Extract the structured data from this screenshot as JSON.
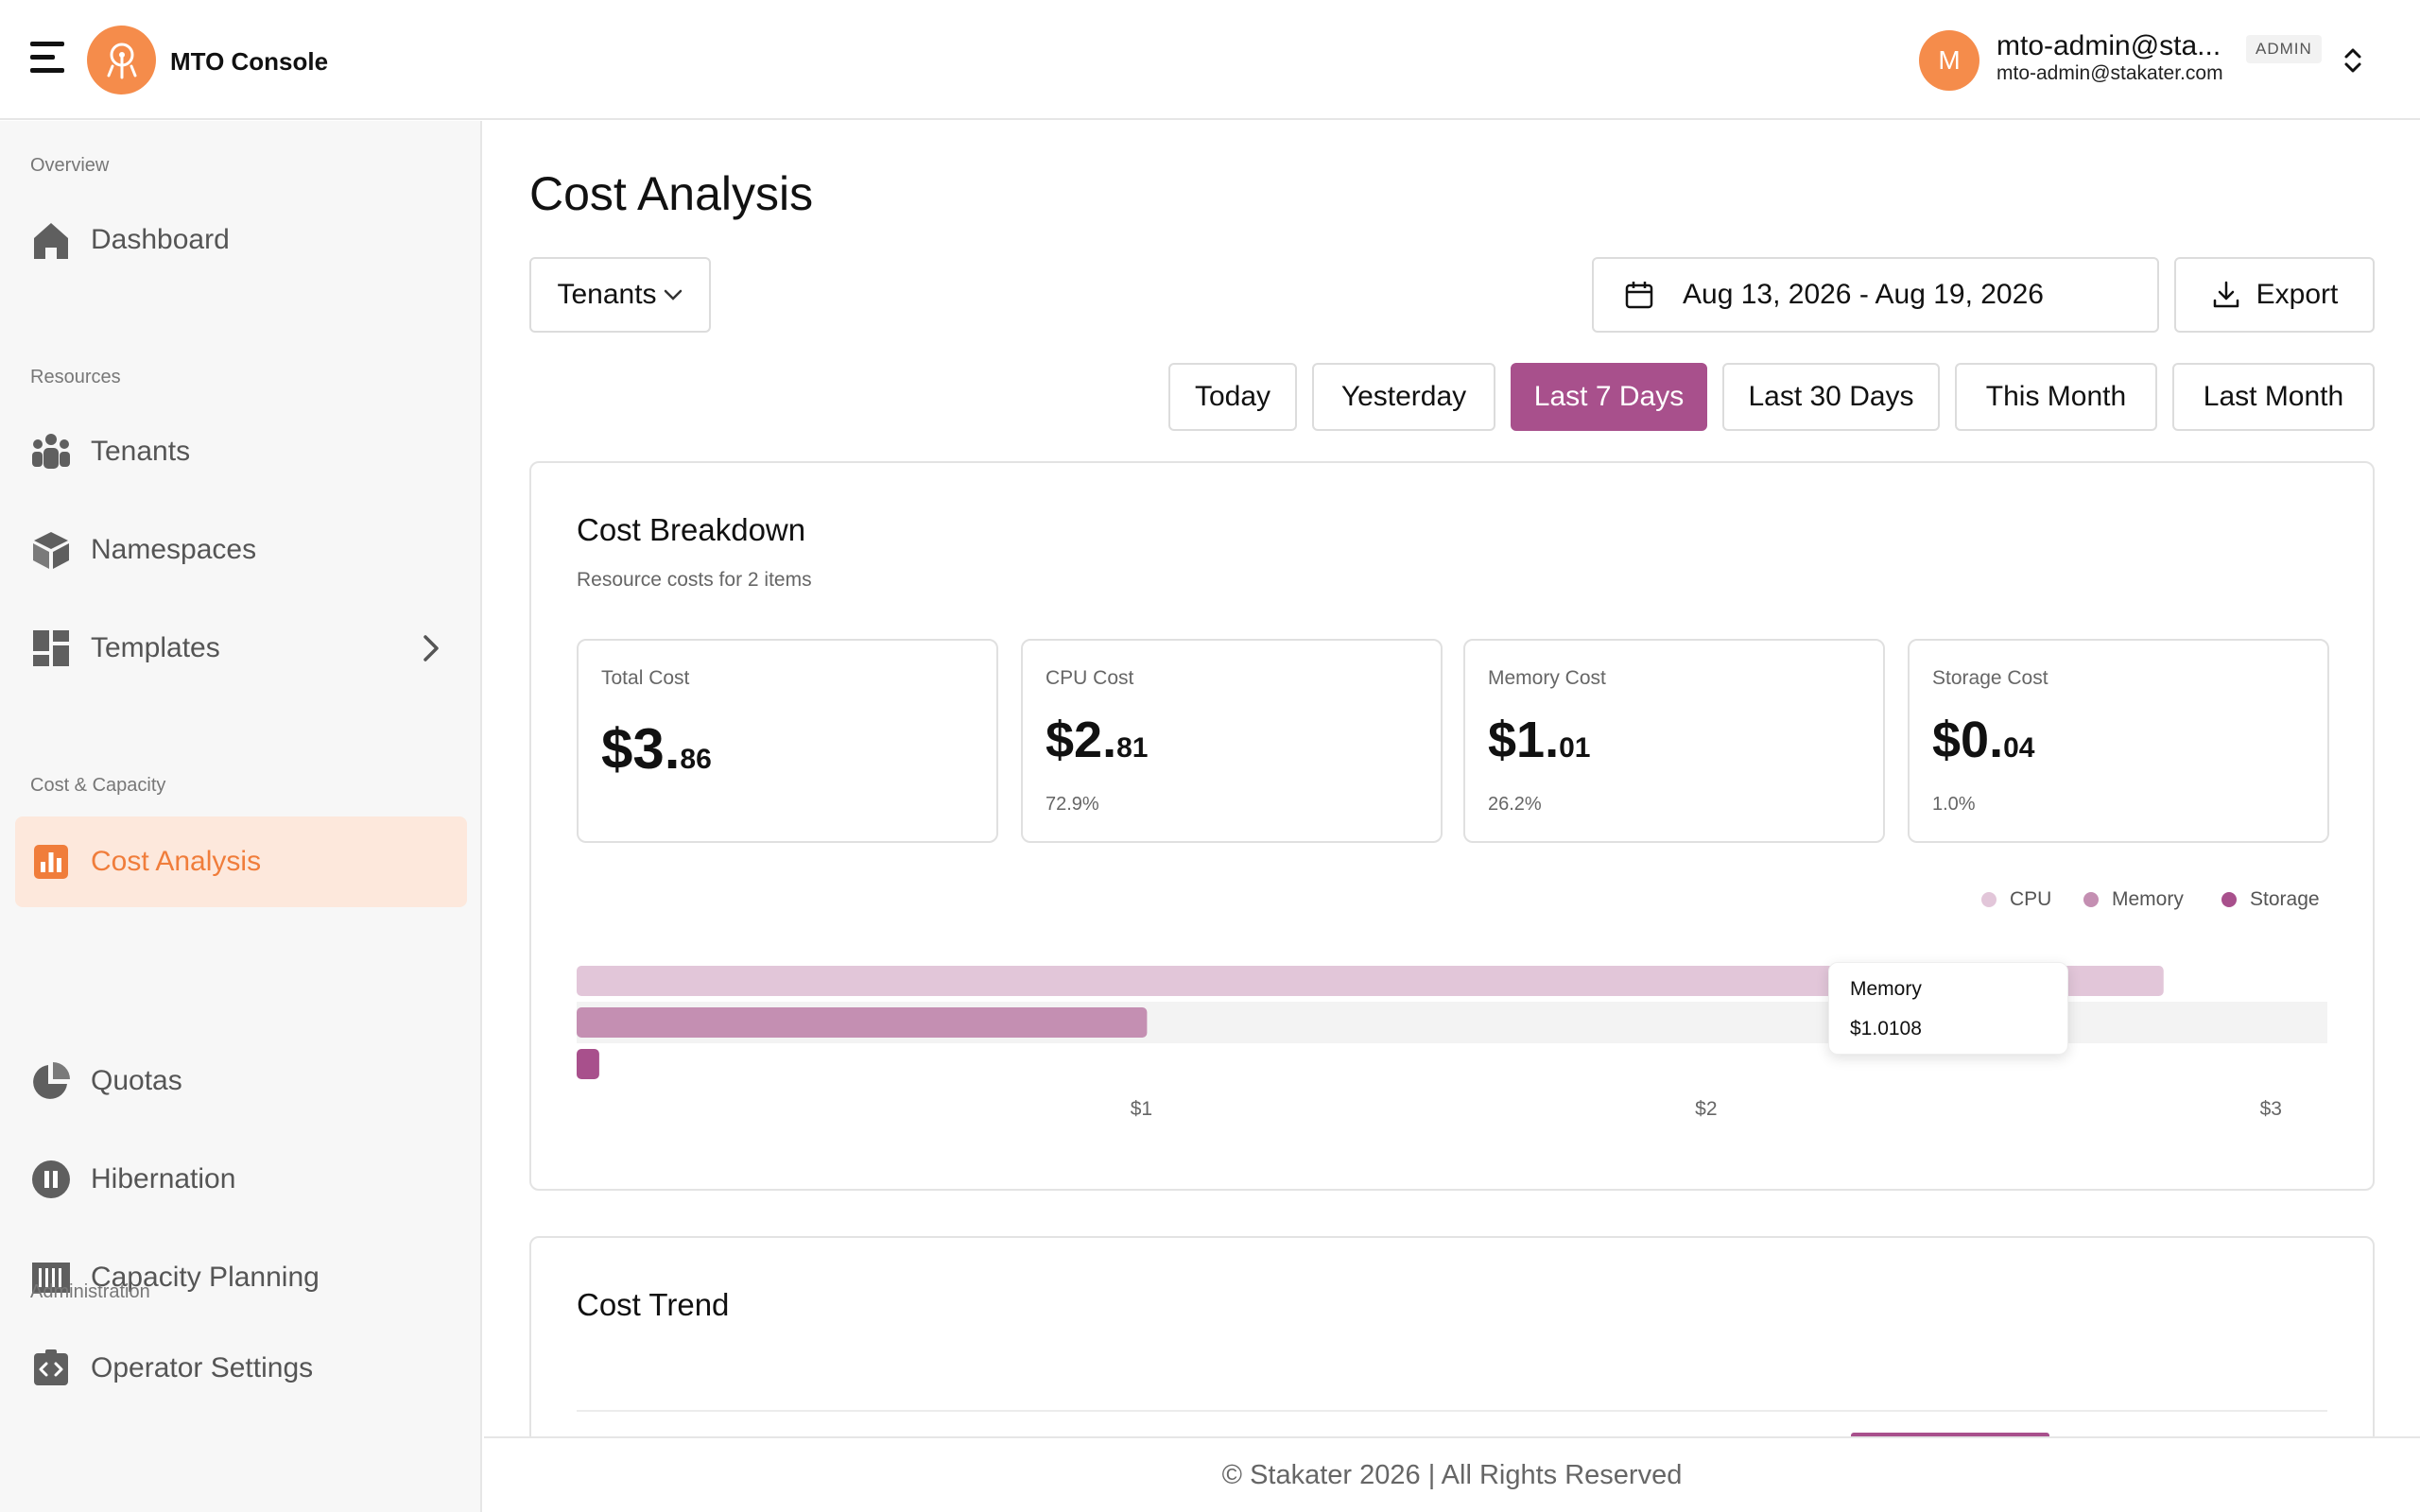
{
  "header": {
    "app_title": "MTO Console",
    "user": {
      "initial": "M",
      "name": "mto-admin@sta...",
      "email": "mto-admin@stakater.com",
      "role": "ADMIN"
    }
  },
  "sidebar": {
    "sections": {
      "overview": "Overview",
      "resources": "Resources",
      "cost_capacity": "Cost & Capacity",
      "administration": "Administration"
    },
    "items": {
      "dashboard": "Dashboard",
      "tenants": "Tenants",
      "namespaces": "Namespaces",
      "templates": "Templates",
      "cost_analysis": "Cost Analysis",
      "quotas": "Quotas",
      "hibernation": "Hibernation",
      "capacity_planning": "Capacity Planning",
      "operator_settings": "Operator Settings"
    },
    "active": "cost_analysis"
  },
  "main": {
    "title": "Cost Analysis",
    "filter_label": "Tenants",
    "date_range": "Aug 13, 2026 - Aug 19, 2026",
    "export_label": "Export",
    "periods": [
      "Today",
      "Yesterday",
      "Last 7 Days",
      "Last 30 Days",
      "This Month",
      "Last Month"
    ],
    "active_period": "Last 7 Days",
    "breakdown": {
      "title": "Cost Breakdown",
      "subtitle": "Resource costs for 2 items",
      "stats": {
        "total": {
          "label": "Total Cost",
          "int": "$3.",
          "dec": "86"
        },
        "cpu": {
          "label": "CPU Cost",
          "int": "$2.",
          "dec": "81",
          "pct": "72.9%"
        },
        "memory": {
          "label": "Memory Cost",
          "int": "$1.",
          "dec": "01",
          "pct": "26.2%"
        },
        "storage": {
          "label": "Storage Cost",
          "int": "$0.",
          "dec": "04",
          "pct": "1.0%"
        }
      },
      "tooltip": {
        "title": "Memory",
        "value": "$1.0108"
      }
    },
    "trend": {
      "title": "Cost Trend"
    }
  },
  "chart_data": {
    "type": "bar",
    "orientation": "horizontal",
    "categories": [
      "CPU",
      "Memory",
      "Storage"
    ],
    "values": [
      2.81,
      1.01,
      0.04
    ],
    "colors": [
      "#e2c6d9",
      "#c48fb2",
      "#a8508c"
    ],
    "xlim": [
      0,
      3.1
    ],
    "x_ticks": [
      {
        "value": 1,
        "label": "$1"
      },
      {
        "value": 2,
        "label": "$2"
      },
      {
        "value": 3,
        "label": "$3"
      }
    ],
    "legend": [
      "CPU",
      "Memory",
      "Storage"
    ],
    "legend_position": "top-right",
    "highlighted": "Memory",
    "grid": false
  },
  "footer": {
    "text": "© Stakater 2026 | All Rights Reserved"
  },
  "colors": {
    "accent": "#f58c4b",
    "primary": "#a8508c",
    "active_bg": "#fde8dc"
  }
}
